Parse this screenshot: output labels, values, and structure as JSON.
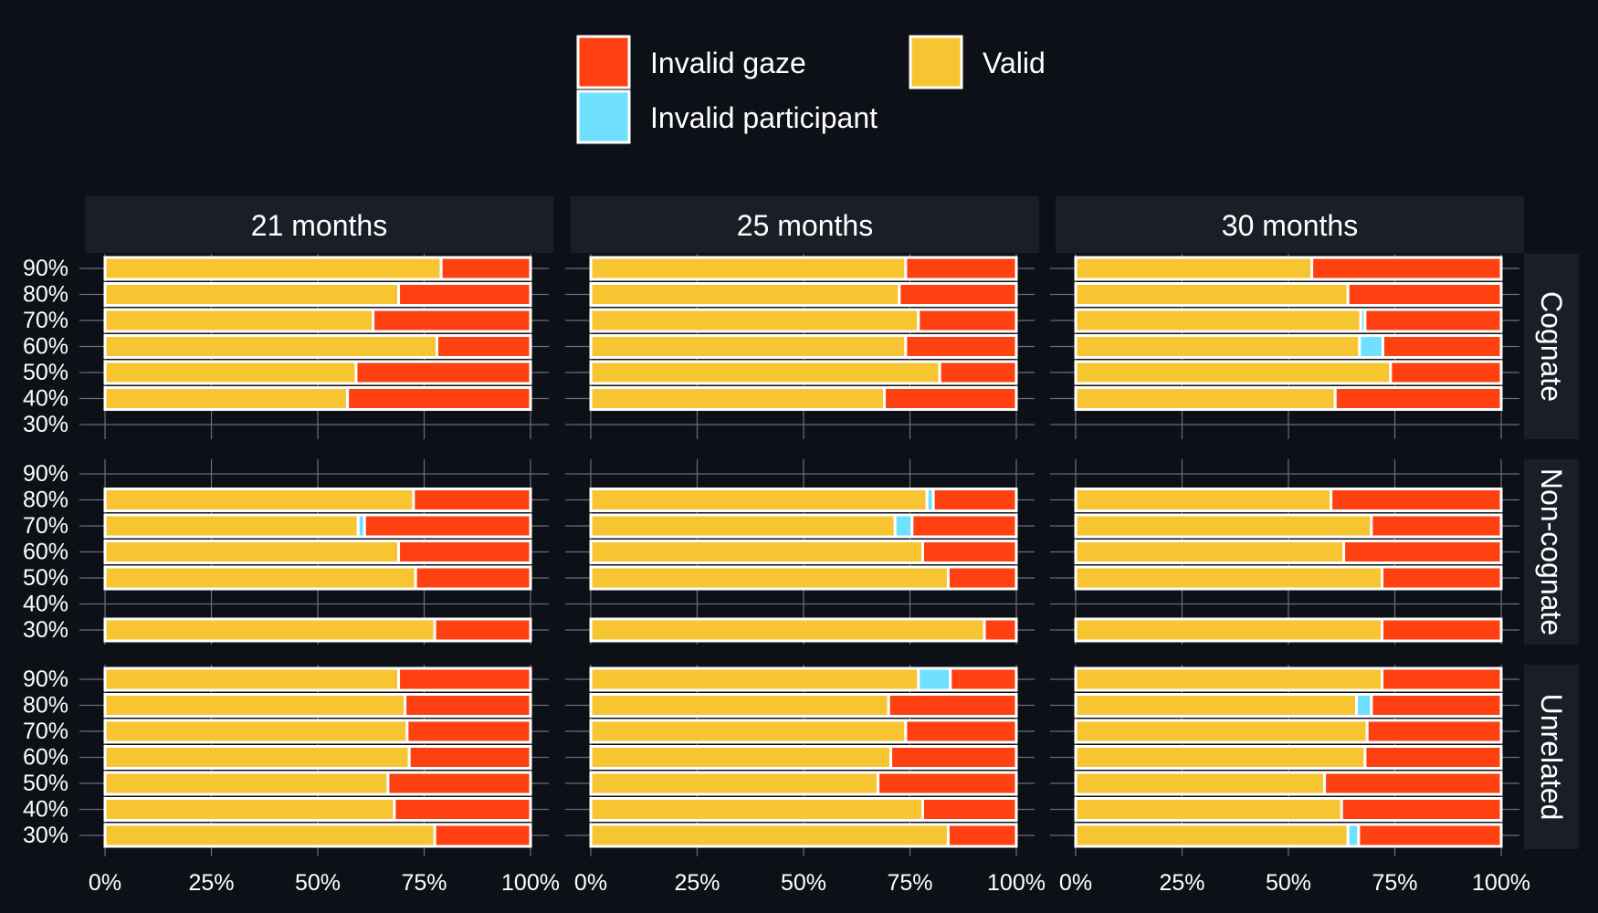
{
  "chart_data": {
    "type": "bar",
    "orientation": "horizontal",
    "stacked": true,
    "legend_position": "top",
    "colors": {
      "Valid": "#f7c531",
      "Invalid gaze": "#ff4010",
      "Invalid participant": "#70e0ff"
    },
    "legend": [
      "Invalid gaze",
      "Valid",
      "Invalid participant"
    ],
    "columns": [
      "21 months",
      "25 months",
      "30 months"
    ],
    "rows": [
      "Cognate",
      "Non-cognate",
      "Unrelated"
    ],
    "y_ticks": [
      "30%",
      "40%",
      "50%",
      "60%",
      "70%",
      "80%",
      "90%"
    ],
    "x_ticks": [
      "0%",
      "25%",
      "50%",
      "75%",
      "100%"
    ],
    "xlim": [
      0,
      100
    ],
    "panels": [
      {
        "row": "Cognate",
        "col": "21 months",
        "bars": [
          {
            "y": "40%",
            "valid": 57,
            "invalid_participant": 0,
            "invalid_gaze": 43
          },
          {
            "y": "50%",
            "valid": 59,
            "invalid_participant": 0,
            "invalid_gaze": 41
          },
          {
            "y": "60%",
            "valid": 78,
            "invalid_participant": 0,
            "invalid_gaze": 22
          },
          {
            "y": "70%",
            "valid": 63,
            "invalid_participant": 0,
            "invalid_gaze": 37
          },
          {
            "y": "80%",
            "valid": 69,
            "invalid_participant": 0,
            "invalid_gaze": 31
          },
          {
            "y": "90%",
            "valid": 79,
            "invalid_participant": 0,
            "invalid_gaze": 21
          }
        ]
      },
      {
        "row": "Cognate",
        "col": "25 months",
        "bars": [
          {
            "y": "40%",
            "valid": 69,
            "invalid_participant": 0,
            "invalid_gaze": 31
          },
          {
            "y": "50%",
            "valid": 82,
            "invalid_participant": 0,
            "invalid_gaze": 18
          },
          {
            "y": "60%",
            "valid": 74,
            "invalid_participant": 0,
            "invalid_gaze": 26
          },
          {
            "y": "70%",
            "valid": 77,
            "invalid_participant": 0,
            "invalid_gaze": 23
          },
          {
            "y": "80%",
            "valid": 72.5,
            "invalid_participant": 0,
            "invalid_gaze": 27.5
          },
          {
            "y": "90%",
            "valid": 74,
            "invalid_participant": 0,
            "invalid_gaze": 26
          }
        ]
      },
      {
        "row": "Cognate",
        "col": "30 months",
        "bars": [
          {
            "y": "40%",
            "valid": 61,
            "invalid_participant": 0,
            "invalid_gaze": 39
          },
          {
            "y": "50%",
            "valid": 74,
            "invalid_participant": 0,
            "invalid_gaze": 26
          },
          {
            "y": "60%",
            "valid": 66.7,
            "invalid_participant": 5.5,
            "invalid_gaze": 27.8
          },
          {
            "y": "70%",
            "valid": 67,
            "invalid_participant": 1,
            "invalid_gaze": 32
          },
          {
            "y": "80%",
            "valid": 64,
            "invalid_participant": 0,
            "invalid_gaze": 36
          },
          {
            "y": "90%",
            "valid": 55.5,
            "invalid_participant": 0,
            "invalid_gaze": 44.5
          }
        ]
      },
      {
        "row": "Non-cognate",
        "col": "21 months",
        "bars": [
          {
            "y": "30%",
            "valid": 77.5,
            "invalid_participant": 0,
            "invalid_gaze": 22.5
          },
          {
            "y": "50%",
            "valid": 73,
            "invalid_participant": 0,
            "invalid_gaze": 27
          },
          {
            "y": "60%",
            "valid": 69,
            "invalid_participant": 0,
            "invalid_gaze": 31
          },
          {
            "y": "70%",
            "valid": 59.5,
            "invalid_participant": 1.5,
            "invalid_gaze": 39
          },
          {
            "y": "80%",
            "valid": 72.5,
            "invalid_participant": 0,
            "invalid_gaze": 27.5
          }
        ]
      },
      {
        "row": "Non-cognate",
        "col": "25 months",
        "bars": [
          {
            "y": "30%",
            "valid": 92.5,
            "invalid_participant": 0,
            "invalid_gaze": 7.5
          },
          {
            "y": "50%",
            "valid": 84,
            "invalid_participant": 0,
            "invalid_gaze": 16
          },
          {
            "y": "60%",
            "valid": 78,
            "invalid_participant": 0,
            "invalid_gaze": 22
          },
          {
            "y": "70%",
            "valid": 71.5,
            "invalid_participant": 4,
            "invalid_gaze": 24.5
          },
          {
            "y": "80%",
            "valid": 79,
            "invalid_participant": 1.5,
            "invalid_gaze": 19.5
          }
        ]
      },
      {
        "row": "Non-cognate",
        "col": "30 months",
        "bars": [
          {
            "y": "30%",
            "valid": 72,
            "invalid_participant": 0,
            "invalid_gaze": 28
          },
          {
            "y": "50%",
            "valid": 72,
            "invalid_participant": 0,
            "invalid_gaze": 28
          },
          {
            "y": "60%",
            "valid": 63,
            "invalid_participant": 0,
            "invalid_gaze": 37
          },
          {
            "y": "70%",
            "valid": 69.5,
            "invalid_participant": 0,
            "invalid_gaze": 30.5
          },
          {
            "y": "80%",
            "valid": 60,
            "invalid_participant": 0,
            "invalid_gaze": 40
          }
        ]
      },
      {
        "row": "Unrelated",
        "col": "21 months",
        "bars": [
          {
            "y": "30%",
            "valid": 77.5,
            "invalid_participant": 0,
            "invalid_gaze": 22.5
          },
          {
            "y": "40%",
            "valid": 68,
            "invalid_participant": 0,
            "invalid_gaze": 32
          },
          {
            "y": "50%",
            "valid": 66.5,
            "invalid_participant": 0,
            "invalid_gaze": 33.5
          },
          {
            "y": "60%",
            "valid": 71.5,
            "invalid_participant": 0,
            "invalid_gaze": 28.5
          },
          {
            "y": "70%",
            "valid": 71,
            "invalid_participant": 0,
            "invalid_gaze": 29
          },
          {
            "y": "80%",
            "valid": 70.5,
            "invalid_participant": 0,
            "invalid_gaze": 29.5
          },
          {
            "y": "90%",
            "valid": 69,
            "invalid_participant": 0,
            "invalid_gaze": 31
          }
        ]
      },
      {
        "row": "Unrelated",
        "col": "25 months",
        "bars": [
          {
            "y": "30%",
            "valid": 84,
            "invalid_participant": 0,
            "invalid_gaze": 16
          },
          {
            "y": "40%",
            "valid": 78,
            "invalid_participant": 0,
            "invalid_gaze": 22
          },
          {
            "y": "50%",
            "valid": 67.5,
            "invalid_participant": 0,
            "invalid_gaze": 32.5
          },
          {
            "y": "60%",
            "valid": 70.5,
            "invalid_participant": 0,
            "invalid_gaze": 29.5
          },
          {
            "y": "70%",
            "valid": 74,
            "invalid_participant": 0,
            "invalid_gaze": 26
          },
          {
            "y": "80%",
            "valid": 70,
            "invalid_participant": 0,
            "invalid_gaze": 30
          },
          {
            "y": "90%",
            "valid": 77,
            "invalid_participant": 7.5,
            "invalid_gaze": 15.5
          }
        ]
      },
      {
        "row": "Unrelated",
        "col": "30 months",
        "bars": [
          {
            "y": "30%",
            "valid": 64,
            "invalid_participant": 2.5,
            "invalid_gaze": 33.5
          },
          {
            "y": "40%",
            "valid": 62.5,
            "invalid_participant": 0,
            "invalid_gaze": 37.5
          },
          {
            "y": "50%",
            "valid": 58.5,
            "invalid_participant": 0,
            "invalid_gaze": 41.5
          },
          {
            "y": "60%",
            "valid": 68,
            "invalid_participant": 0,
            "invalid_gaze": 32
          },
          {
            "y": "70%",
            "valid": 68.5,
            "invalid_participant": 0,
            "invalid_gaze": 31.5
          },
          {
            "y": "80%",
            "valid": 66,
            "invalid_participant": 3.5,
            "invalid_gaze": 30.5
          },
          {
            "y": "90%",
            "valid": 72,
            "invalid_participant": 0,
            "invalid_gaze": 28
          }
        ]
      }
    ]
  }
}
